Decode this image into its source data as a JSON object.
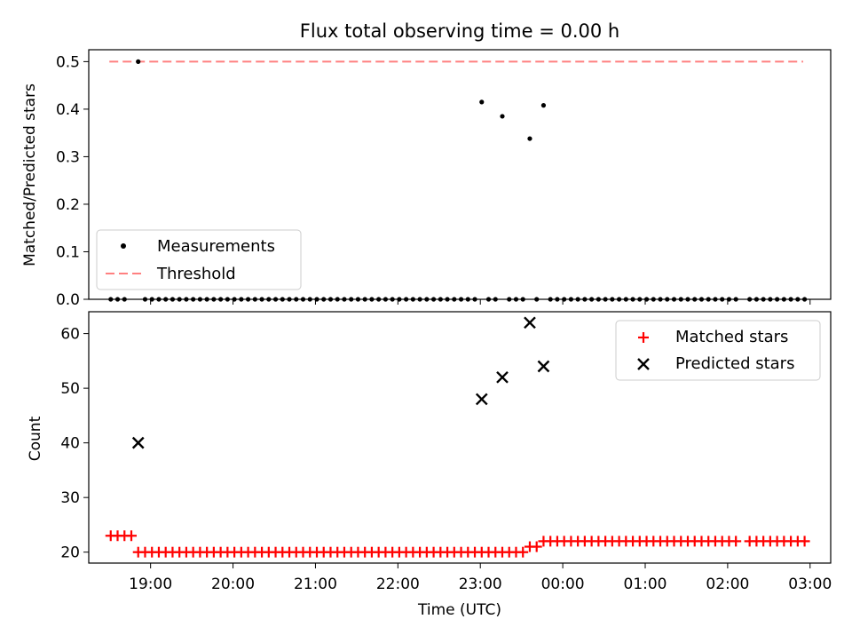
{
  "chart_data": [
    {
      "type": "scatter",
      "title": "Flux total observing time = 0.00 h",
      "xlabel": "",
      "ylabel": "Matched/Predicted stars",
      "ylim": [
        0,
        0.525
      ],
      "yticks": [
        "0.0",
        "0.1",
        "0.2",
        "0.3",
        "0.4",
        "0.5"
      ],
      "xlim": [
        "18:15",
        "03:15"
      ],
      "grid": false,
      "legend_position": "lower-left",
      "threshold": {
        "name": "Threshold",
        "value": 0.5,
        "color": "#ff8080",
        "style": "dashed",
        "x_start": "18:30",
        "x_end": "02:55"
      },
      "series": [
        {
          "name": "Measurements",
          "color": "#000000",
          "points": [
            [
              "18:51",
              0.5
            ],
            [
              "23:01",
              0.415
            ],
            [
              "23:16",
              0.385
            ],
            [
              "23:36",
              0.338
            ],
            [
              "23:46",
              0.408
            ],
            [
              "18:31",
              0
            ],
            [
              "18:36",
              0
            ],
            [
              "18:41",
              0
            ],
            [
              "18:56",
              0
            ],
            [
              "19:01",
              0
            ],
            [
              "19:06",
              0
            ],
            [
              "19:11",
              0
            ],
            [
              "19:16",
              0
            ],
            [
              "19:21",
              0
            ],
            [
              "19:26",
              0
            ],
            [
              "19:31",
              0
            ],
            [
              "19:36",
              0
            ],
            [
              "19:41",
              0
            ],
            [
              "19:46",
              0
            ],
            [
              "19:51",
              0
            ],
            [
              "19:56",
              0
            ],
            [
              "20:01",
              0
            ],
            [
              "20:06",
              0
            ],
            [
              "20:11",
              0
            ],
            [
              "20:16",
              0
            ],
            [
              "20:21",
              0
            ],
            [
              "20:26",
              0
            ],
            [
              "20:31",
              0
            ],
            [
              "20:36",
              0
            ],
            [
              "20:41",
              0
            ],
            [
              "20:46",
              0
            ],
            [
              "20:51",
              0
            ],
            [
              "20:56",
              0
            ],
            [
              "21:01",
              0
            ],
            [
              "21:06",
              0
            ],
            [
              "21:11",
              0
            ],
            [
              "21:16",
              0
            ],
            [
              "21:21",
              0
            ],
            [
              "21:26",
              0
            ],
            [
              "21:31",
              0
            ],
            [
              "21:36",
              0
            ],
            [
              "21:41",
              0
            ],
            [
              "21:46",
              0
            ],
            [
              "21:51",
              0
            ],
            [
              "21:56",
              0
            ],
            [
              "22:01",
              0
            ],
            [
              "22:06",
              0
            ],
            [
              "22:11",
              0
            ],
            [
              "22:16",
              0
            ],
            [
              "22:21",
              0
            ],
            [
              "22:26",
              0
            ],
            [
              "22:31",
              0
            ],
            [
              "22:36",
              0
            ],
            [
              "22:41",
              0
            ],
            [
              "22:46",
              0
            ],
            [
              "22:51",
              0
            ],
            [
              "22:56",
              0
            ],
            [
              "23:06",
              0
            ],
            [
              "23:11",
              0
            ],
            [
              "23:21",
              0
            ],
            [
              "23:26",
              0
            ],
            [
              "23:31",
              0
            ],
            [
              "23:41",
              0
            ],
            [
              "23:51",
              0
            ],
            [
              "23:56",
              0
            ],
            [
              "00:01",
              0
            ],
            [
              "00:06",
              0
            ],
            [
              "00:11",
              0
            ],
            [
              "00:16",
              0
            ],
            [
              "00:21",
              0
            ],
            [
              "00:26",
              0
            ],
            [
              "00:31",
              0
            ],
            [
              "00:36",
              0
            ],
            [
              "00:41",
              0
            ],
            [
              "00:46",
              0
            ],
            [
              "00:51",
              0
            ],
            [
              "00:56",
              0
            ],
            [
              "01:01",
              0
            ],
            [
              "01:06",
              0
            ],
            [
              "01:11",
              0
            ],
            [
              "01:16",
              0
            ],
            [
              "01:21",
              0
            ],
            [
              "01:26",
              0
            ],
            [
              "01:31",
              0
            ],
            [
              "01:36",
              0
            ],
            [
              "01:41",
              0
            ],
            [
              "01:46",
              0
            ],
            [
              "01:51",
              0
            ],
            [
              "01:56",
              0
            ],
            [
              "02:01",
              0
            ],
            [
              "02:06",
              0
            ],
            [
              "02:16",
              0
            ],
            [
              "02:21",
              0
            ],
            [
              "02:26",
              0
            ],
            [
              "02:31",
              0
            ],
            [
              "02:36",
              0
            ],
            [
              "02:41",
              0
            ],
            [
              "02:46",
              0
            ],
            [
              "02:51",
              0
            ],
            [
              "02:56",
              0
            ]
          ]
        }
      ]
    },
    {
      "type": "scatter",
      "title": "",
      "xlabel": "Time (UTC)",
      "ylabel": "Count",
      "ylim": [
        18,
        64
      ],
      "yticks": [
        "20",
        "30",
        "40",
        "50",
        "60"
      ],
      "xlim": [
        "18:15",
        "03:15"
      ],
      "xticks": [
        "19:00",
        "20:00",
        "21:00",
        "22:00",
        "23:00",
        "00:00",
        "01:00",
        "02:00",
        "03:00"
      ],
      "grid": false,
      "legend_position": "upper-right",
      "series": [
        {
          "name": "Matched stars",
          "marker": "plus",
          "color": "#ff0000",
          "points": [
            [
              "18:31",
              23
            ],
            [
              "18:36",
              23
            ],
            [
              "18:41",
              23
            ],
            [
              "18:46",
              23
            ],
            [
              "18:51",
              20
            ],
            [
              "18:56",
              20
            ],
            [
              "19:01",
              20
            ],
            [
              "19:06",
              20
            ],
            [
              "19:11",
              20
            ],
            [
              "19:16",
              20
            ],
            [
              "19:21",
              20
            ],
            [
              "19:26",
              20
            ],
            [
              "19:31",
              20
            ],
            [
              "19:36",
              20
            ],
            [
              "19:41",
              20
            ],
            [
              "19:46",
              20
            ],
            [
              "19:51",
              20
            ],
            [
              "19:56",
              20
            ],
            [
              "20:01",
              20
            ],
            [
              "20:06",
              20
            ],
            [
              "20:11",
              20
            ],
            [
              "20:16",
              20
            ],
            [
              "20:21",
              20
            ],
            [
              "20:26",
              20
            ],
            [
              "20:31",
              20
            ],
            [
              "20:36",
              20
            ],
            [
              "20:41",
              20
            ],
            [
              "20:46",
              20
            ],
            [
              "20:51",
              20
            ],
            [
              "20:56",
              20
            ],
            [
              "21:01",
              20
            ],
            [
              "21:06",
              20
            ],
            [
              "21:11",
              20
            ],
            [
              "21:16",
              20
            ],
            [
              "21:21",
              20
            ],
            [
              "21:26",
              20
            ],
            [
              "21:31",
              20
            ],
            [
              "21:36",
              20
            ],
            [
              "21:41",
              20
            ],
            [
              "21:46",
              20
            ],
            [
              "21:51",
              20
            ],
            [
              "21:56",
              20
            ],
            [
              "22:01",
              20
            ],
            [
              "22:06",
              20
            ],
            [
              "22:11",
              20
            ],
            [
              "22:16",
              20
            ],
            [
              "22:21",
              20
            ],
            [
              "22:26",
              20
            ],
            [
              "22:31",
              20
            ],
            [
              "22:36",
              20
            ],
            [
              "22:41",
              20
            ],
            [
              "22:46",
              20
            ],
            [
              "22:51",
              20
            ],
            [
              "22:56",
              20
            ],
            [
              "23:01",
              20
            ],
            [
              "23:06",
              20
            ],
            [
              "23:11",
              20
            ],
            [
              "23:16",
              20
            ],
            [
              "23:21",
              20
            ],
            [
              "23:26",
              20
            ],
            [
              "23:31",
              20
            ],
            [
              "23:36",
              21
            ],
            [
              "23:41",
              21
            ],
            [
              "23:46",
              22
            ],
            [
              "23:51",
              22
            ],
            [
              "23:56",
              22
            ],
            [
              "00:01",
              22
            ],
            [
              "00:06",
              22
            ],
            [
              "00:11",
              22
            ],
            [
              "00:16",
              22
            ],
            [
              "00:21",
              22
            ],
            [
              "00:26",
              22
            ],
            [
              "00:31",
              22
            ],
            [
              "00:36",
              22
            ],
            [
              "00:41",
              22
            ],
            [
              "00:46",
              22
            ],
            [
              "00:51",
              22
            ],
            [
              "00:56",
              22
            ],
            [
              "01:01",
              22
            ],
            [
              "01:06",
              22
            ],
            [
              "01:11",
              22
            ],
            [
              "01:16",
              22
            ],
            [
              "01:21",
              22
            ],
            [
              "01:26",
              22
            ],
            [
              "01:31",
              22
            ],
            [
              "01:36",
              22
            ],
            [
              "01:41",
              22
            ],
            [
              "01:46",
              22
            ],
            [
              "01:51",
              22
            ],
            [
              "01:56",
              22
            ],
            [
              "02:01",
              22
            ],
            [
              "02:06",
              22
            ],
            [
              "02:16",
              22
            ],
            [
              "02:21",
              22
            ],
            [
              "02:26",
              22
            ],
            [
              "02:31",
              22
            ],
            [
              "02:36",
              22
            ],
            [
              "02:41",
              22
            ],
            [
              "02:46",
              22
            ],
            [
              "02:51",
              22
            ],
            [
              "02:56",
              22
            ]
          ]
        },
        {
          "name": "Predicted stars",
          "marker": "x",
          "color": "#000000",
          "points": [
            [
              "18:51",
              40
            ],
            [
              "23:01",
              48
            ],
            [
              "23:16",
              52
            ],
            [
              "23:36",
              62
            ],
            [
              "23:46",
              54
            ]
          ]
        }
      ]
    }
  ]
}
